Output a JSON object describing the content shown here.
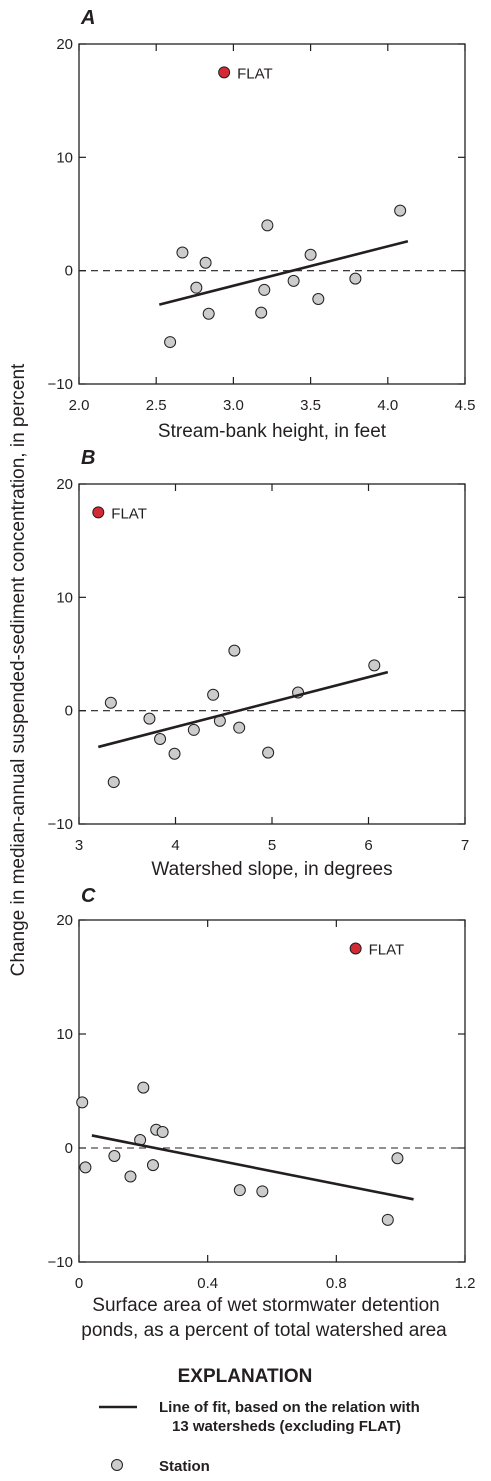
{
  "y_axis_label": "Change in median-annual suspended-sediment concentration, in percent",
  "explanation": {
    "title": "EXPLANATION",
    "line_label_1": "Line of fit, based on the relation with",
    "line_label_2": "13 watersheds (excluding FLAT)",
    "station_label": "Station"
  },
  "colors": {
    "station_fill": "#cccccc",
    "flat_fill": "#d22b35",
    "line": "#231f20"
  },
  "chart_data": [
    {
      "type": "scatter",
      "panel": "A",
      "xlabel": "Stream-bank height, in feet",
      "ylabel": "Change in median-annual suspended-sediment concentration, in percent",
      "xlim": [
        2.0,
        4.5
      ],
      "ylim": [
        -10,
        20
      ],
      "xticks": [
        "2.0",
        "2.5",
        "3.0",
        "3.5",
        "4.0",
        "4.5"
      ],
      "yticks": [
        "-10",
        "0",
        "10",
        "20"
      ],
      "grid": false,
      "zero_line": "dashed",
      "series": [
        {
          "name": "Station",
          "points": [
            [
              2.59,
              -6.3
            ],
            [
              2.67,
              1.6
            ],
            [
              2.76,
              -1.5
            ],
            [
              2.82,
              0.7
            ],
            [
              2.84,
              -3.8
            ],
            [
              3.18,
              -3.7
            ],
            [
              3.2,
              -1.7
            ],
            [
              3.22,
              4.0
            ],
            [
              3.39,
              -0.9
            ],
            [
              3.5,
              1.4
            ],
            [
              3.55,
              -2.5
            ],
            [
              3.79,
              -0.7
            ],
            [
              4.08,
              5.3
            ]
          ]
        },
        {
          "name": "FLAT",
          "points": [
            [
              2.94,
              17.5
            ]
          ]
        },
        {
          "name": "Line of fit",
          "line": [
            [
              2.52,
              -3.0
            ],
            [
              4.13,
              2.6
            ]
          ]
        }
      ]
    },
    {
      "type": "scatter",
      "panel": "B",
      "xlabel": "Watershed slope, in degrees",
      "ylabel": "Change in median-annual suspended-sediment concentration, in percent",
      "xlim": [
        3,
        7
      ],
      "ylim": [
        -10,
        20
      ],
      "xticks": [
        "3",
        "4",
        "5",
        "6",
        "7"
      ],
      "yticks": [
        "-10",
        "0",
        "10",
        "20"
      ],
      "grid": false,
      "zero_line": "dashed",
      "series": [
        {
          "name": "Station",
          "points": [
            [
              3.33,
              0.7
            ],
            [
              3.36,
              -6.3
            ],
            [
              3.73,
              -0.7
            ],
            [
              3.84,
              -2.5
            ],
            [
              3.99,
              -3.8
            ],
            [
              4.19,
              -1.7
            ],
            [
              4.39,
              1.4
            ],
            [
              4.46,
              -0.9
            ],
            [
              4.61,
              5.3
            ],
            [
              4.66,
              -1.5
            ],
            [
              4.96,
              -3.7
            ],
            [
              5.27,
              1.6
            ],
            [
              6.06,
              4.0
            ]
          ]
        },
        {
          "name": "FLAT",
          "points": [
            [
              3.2,
              17.5
            ]
          ]
        },
        {
          "name": "Line of fit",
          "line": [
            [
              3.2,
              -3.2
            ],
            [
              6.2,
              3.4
            ]
          ]
        }
      ]
    },
    {
      "type": "scatter",
      "panel": "C",
      "xlabel_line1": "Surface area of wet stormwater detention",
      "xlabel_line2": "ponds, as a percent of total watershed area",
      "ylabel": "Change in median-annual suspended-sediment concentration, in percent",
      "xlim": [
        0,
        1.2
      ],
      "ylim": [
        -10,
        20
      ],
      "xticks": [
        "0",
        "0.4",
        "0.8",
        "1.2"
      ],
      "yticks": [
        "-10",
        "0",
        "10",
        "20"
      ],
      "grid": false,
      "zero_line": "dashed",
      "series": [
        {
          "name": "Station",
          "points": [
            [
              0.01,
              4.0
            ],
            [
              0.02,
              -1.7
            ],
            [
              0.11,
              -0.7
            ],
            [
              0.16,
              -2.5
            ],
            [
              0.19,
              0.7
            ],
            [
              0.2,
              5.3
            ],
            [
              0.23,
              -1.5
            ],
            [
              0.24,
              1.6
            ],
            [
              0.26,
              1.4
            ],
            [
              0.5,
              -3.7
            ],
            [
              0.57,
              -3.8
            ],
            [
              0.96,
              -6.3
            ],
            [
              0.99,
              -0.9
            ]
          ]
        },
        {
          "name": "FLAT",
          "points": [
            [
              0.86,
              17.5
            ]
          ]
        },
        {
          "name": "Line of fit",
          "line": [
            [
              0.04,
              1.1
            ],
            [
              1.04,
              -4.5
            ]
          ]
        }
      ]
    }
  ]
}
